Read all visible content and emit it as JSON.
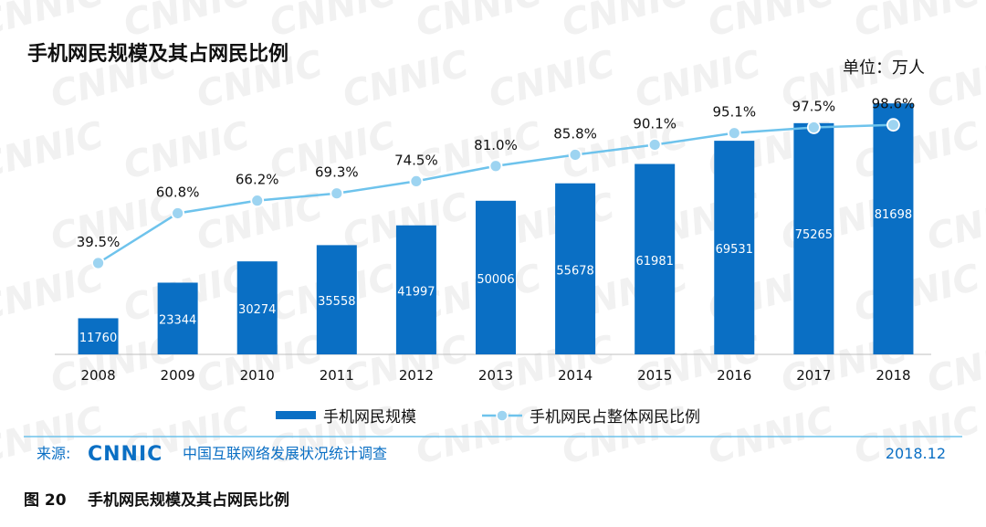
{
  "chart_data": {
    "type": "bar",
    "title": "手机网民规模及其占网民比例",
    "unit_label": "单位：万人",
    "categories": [
      "2008",
      "2009",
      "2010",
      "2011",
      "2012",
      "2013",
      "2014",
      "2015",
      "2016",
      "2017",
      "2018"
    ],
    "series": [
      {
        "name": "手机网民规模",
        "kind": "bar",
        "values": [
          11760,
          23344,
          30274,
          35558,
          41997,
          50006,
          55678,
          61981,
          69531,
          75265,
          81698
        ],
        "labels": [
          "11760",
          "23344",
          "30274",
          "35558",
          "41997",
          "50006",
          "55678",
          "61981",
          "69531",
          "75265",
          "81698"
        ]
      },
      {
        "name": "手机网民占整体网民比例",
        "kind": "line",
        "values": [
          39.5,
          60.8,
          66.2,
          69.3,
          74.5,
          81.0,
          85.8,
          90.1,
          95.1,
          97.5,
          98.6
        ],
        "labels": [
          "39.5%",
          "60.8%",
          "66.2%",
          "69.3%",
          "74.5%",
          "81.0%",
          "85.8%",
          "90.1%",
          "95.1%",
          "97.5%",
          "98.6%"
        ]
      }
    ],
    "bar_ylim": [
      0,
      88000
    ],
    "line_ylim": [
      0,
      100
    ],
    "xlabel": "",
    "ylabel": "",
    "grid": false,
    "legend": "bottom"
  },
  "source": {
    "prefix": "来源:",
    "logo_text": "CNNIC",
    "org": "中国互联网络发展状况统计调查",
    "date": "2018.12"
  },
  "caption": {
    "number": "图 20",
    "text": "手机网民规模及其占网民比例"
  },
  "watermark_text": "CNNIC",
  "colors": {
    "bar": "#0a6fc4",
    "line": "#6ec3ec",
    "marker_fill": "#9dd4f1",
    "marker_stroke": "#ffffff",
    "brand": "#0a6fc4",
    "source_divider": "#6ec3ec",
    "text": "#111111"
  }
}
